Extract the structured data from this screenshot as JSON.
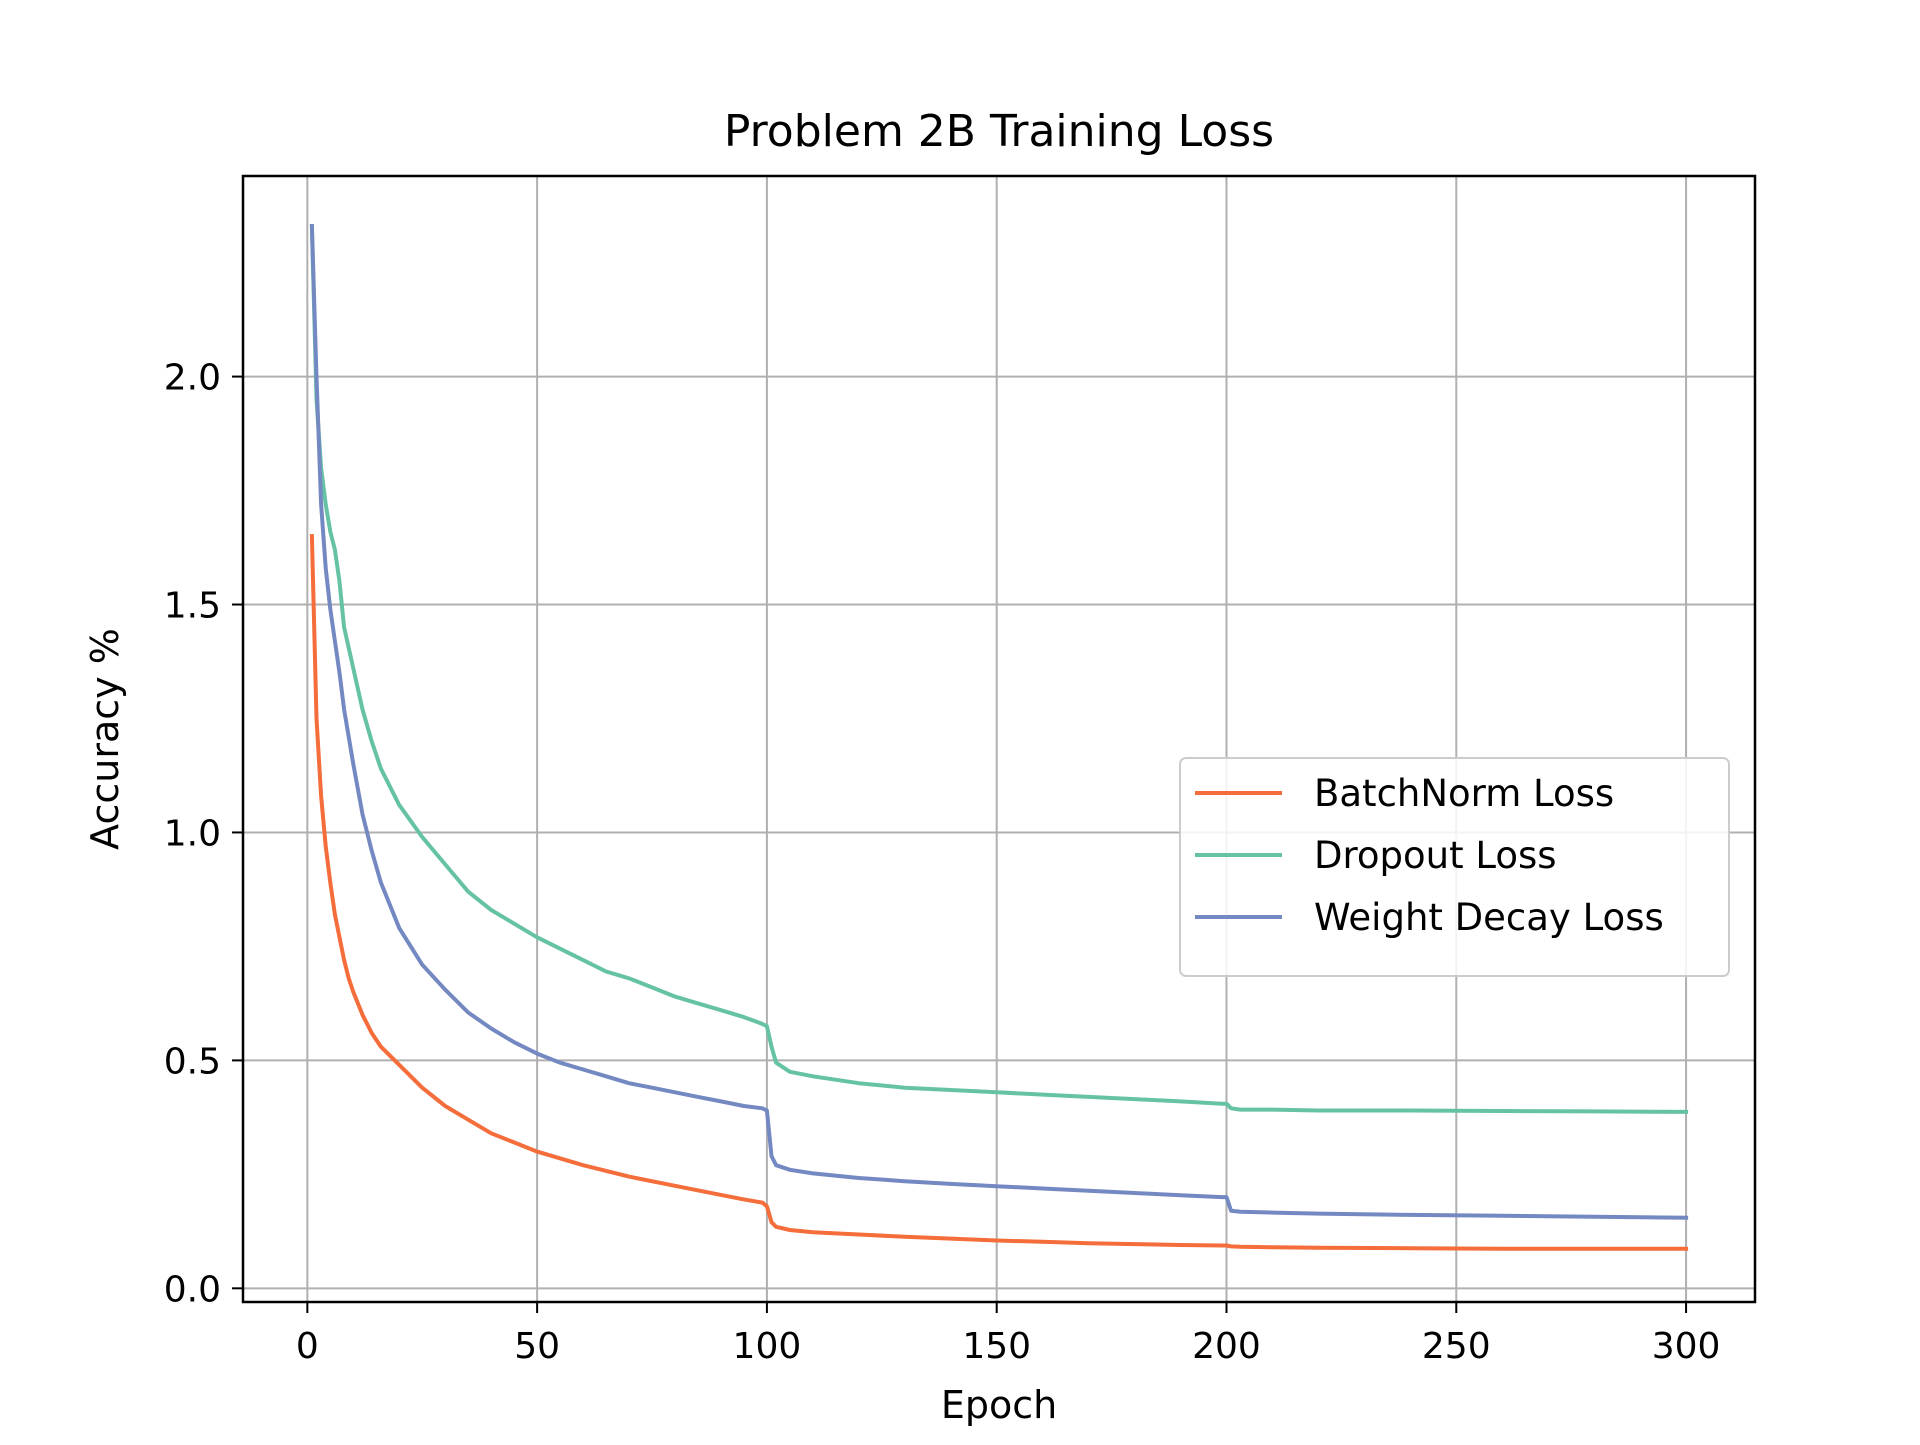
{
  "chart_data": {
    "type": "line",
    "title": "Problem 2B Training Loss",
    "xlabel": "Epoch",
    "ylabel": "Accuracy %",
    "xlim": [
      -14,
      315
    ],
    "ylim": [
      -0.03,
      2.44
    ],
    "xticks": [
      0,
      50,
      100,
      150,
      200,
      250,
      300
    ],
    "xtick_labels": [
      "0",
      "50",
      "100",
      "150",
      "200",
      "250",
      "300"
    ],
    "yticks": [
      0.0,
      0.5,
      1.0,
      1.5,
      2.0
    ],
    "ytick_labels": [
      "0.0",
      "0.5",
      "1.0",
      "1.5",
      "2.0"
    ],
    "grid": true,
    "legend_position": "center-right",
    "series": [
      {
        "name": "BatchNorm Loss",
        "color": "#f46d3a",
        "x": [
          1,
          2,
          3,
          4,
          5,
          6,
          7,
          8,
          9,
          10,
          12,
          14,
          16,
          18,
          20,
          25,
          30,
          35,
          40,
          45,
          50,
          60,
          70,
          80,
          90,
          95,
          99,
          100,
          101,
          102,
          105,
          110,
          120,
          130,
          140,
          150,
          160,
          170,
          180,
          190,
          199,
          200,
          201,
          203,
          210,
          220,
          240,
          260,
          280,
          300
        ],
        "y": [
          1.65,
          1.25,
          1.08,
          0.97,
          0.89,
          0.82,
          0.77,
          0.72,
          0.68,
          0.65,
          0.6,
          0.56,
          0.53,
          0.51,
          0.49,
          0.44,
          0.4,
          0.37,
          0.34,
          0.32,
          0.3,
          0.27,
          0.245,
          0.225,
          0.205,
          0.195,
          0.188,
          0.18,
          0.145,
          0.135,
          0.128,
          0.123,
          0.118,
          0.113,
          0.109,
          0.105,
          0.102,
          0.099,
          0.097,
          0.095,
          0.094,
          0.094,
          0.092,
          0.091,
          0.09,
          0.089,
          0.088,
          0.087,
          0.087,
          0.087
        ]
      },
      {
        "name": "Dropout Loss",
        "color": "#66c2a5",
        "x": [
          1,
          2,
          3,
          4,
          5,
          6,
          7,
          8,
          10,
          12,
          14,
          16,
          18,
          20,
          25,
          30,
          35,
          40,
          45,
          50,
          55,
          60,
          65,
          70,
          75,
          80,
          85,
          90,
          95,
          99,
          100,
          101,
          102,
          105,
          110,
          120,
          130,
          140,
          150,
          160,
          170,
          180,
          190,
          199,
          200,
          201,
          203,
          210,
          220,
          240,
          260,
          280,
          300
        ],
        "y": [
          2.33,
          1.95,
          1.8,
          1.72,
          1.66,
          1.62,
          1.55,
          1.45,
          1.36,
          1.27,
          1.2,
          1.14,
          1.1,
          1.06,
          0.99,
          0.93,
          0.87,
          0.83,
          0.8,
          0.77,
          0.745,
          0.72,
          0.695,
          0.68,
          0.66,
          0.64,
          0.625,
          0.61,
          0.595,
          0.58,
          0.575,
          0.53,
          0.495,
          0.475,
          0.465,
          0.45,
          0.44,
          0.435,
          0.43,
          0.425,
          0.42,
          0.415,
          0.41,
          0.405,
          0.405,
          0.395,
          0.392,
          0.392,
          0.39,
          0.39,
          0.389,
          0.388,
          0.387
        ]
      },
      {
        "name": "Weight Decay Loss",
        "color": "#7489c1",
        "x": [
          1,
          2,
          3,
          4,
          5,
          6,
          7,
          8,
          10,
          12,
          14,
          16,
          18,
          20,
          25,
          30,
          35,
          40,
          45,
          50,
          55,
          60,
          65,
          70,
          75,
          80,
          85,
          90,
          95,
          99,
          100,
          101,
          102,
          105,
          110,
          120,
          130,
          140,
          150,
          160,
          170,
          180,
          190,
          199,
          200,
          201,
          203,
          210,
          220,
          240,
          260,
          280,
          300
        ],
        "y": [
          2.33,
          2.0,
          1.72,
          1.58,
          1.49,
          1.42,
          1.35,
          1.27,
          1.15,
          1.04,
          0.96,
          0.89,
          0.84,
          0.79,
          0.71,
          0.655,
          0.605,
          0.57,
          0.54,
          0.515,
          0.495,
          0.48,
          0.465,
          0.45,
          0.44,
          0.43,
          0.42,
          0.41,
          0.4,
          0.395,
          0.39,
          0.29,
          0.27,
          0.26,
          0.252,
          0.242,
          0.235,
          0.229,
          0.224,
          0.219,
          0.214,
          0.209,
          0.204,
          0.2,
          0.2,
          0.17,
          0.168,
          0.166,
          0.164,
          0.161,
          0.159,
          0.157,
          0.155
        ]
      }
    ]
  }
}
